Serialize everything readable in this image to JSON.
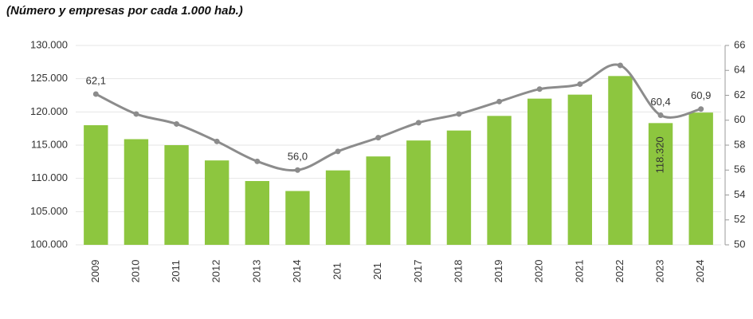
{
  "chart_data": {
    "type": "bar-line",
    "title": "(Número y empresas por cada 1.000 hab.)",
    "categories": [
      "2009",
      "2010",
      "2011",
      "2012",
      "2013",
      "2014",
      "201",
      "201",
      "2017",
      "2018",
      "2019",
      "2020",
      "2021",
      "2022",
      "2023",
      "2024"
    ],
    "series": [
      {
        "type": "bar",
        "color": "#8dc63f",
        "axis": "y",
        "values": [
          118000,
          115900,
          115000,
          112700,
          109600,
          108100,
          111200,
          113300,
          115700,
          117200,
          119400,
          122000,
          122600,
          125400,
          118320,
          119900
        ],
        "value_labels": [
          null,
          null,
          null,
          null,
          null,
          null,
          null,
          null,
          null,
          null,
          null,
          null,
          null,
          null,
          "118.320",
          null
        ]
      },
      {
        "type": "line",
        "color": "#8c8c8c",
        "axis": "y2",
        "values": [
          62.1,
          60.5,
          59.7,
          58.3,
          56.7,
          56.0,
          57.5,
          58.6,
          59.8,
          60.5,
          61.5,
          62.5,
          62.9,
          64.4,
          60.4,
          60.9
        ],
        "value_labels": [
          "62,1",
          null,
          null,
          null,
          null,
          "56,0",
          null,
          null,
          null,
          null,
          null,
          null,
          null,
          null,
          "60,4",
          "60,9"
        ]
      }
    ],
    "ylim": [
      100000,
      130000
    ],
    "yticks": [
      {
        "value": 100000,
        "label": "100.000"
      },
      {
        "value": 105000,
        "label": "105.000"
      },
      {
        "value": 110000,
        "label": "110.000"
      },
      {
        "value": 115000,
        "label": "115.000"
      },
      {
        "value": 120000,
        "label": "120.000"
      },
      {
        "value": 125000,
        "label": "125.000"
      },
      {
        "value": 130000,
        "label": "130.000"
      }
    ],
    "y2lim": [
      50,
      66
    ],
    "y2ticks": [
      50,
      52,
      54,
      56,
      58,
      60,
      62,
      64,
      66
    ],
    "grid": true
  }
}
